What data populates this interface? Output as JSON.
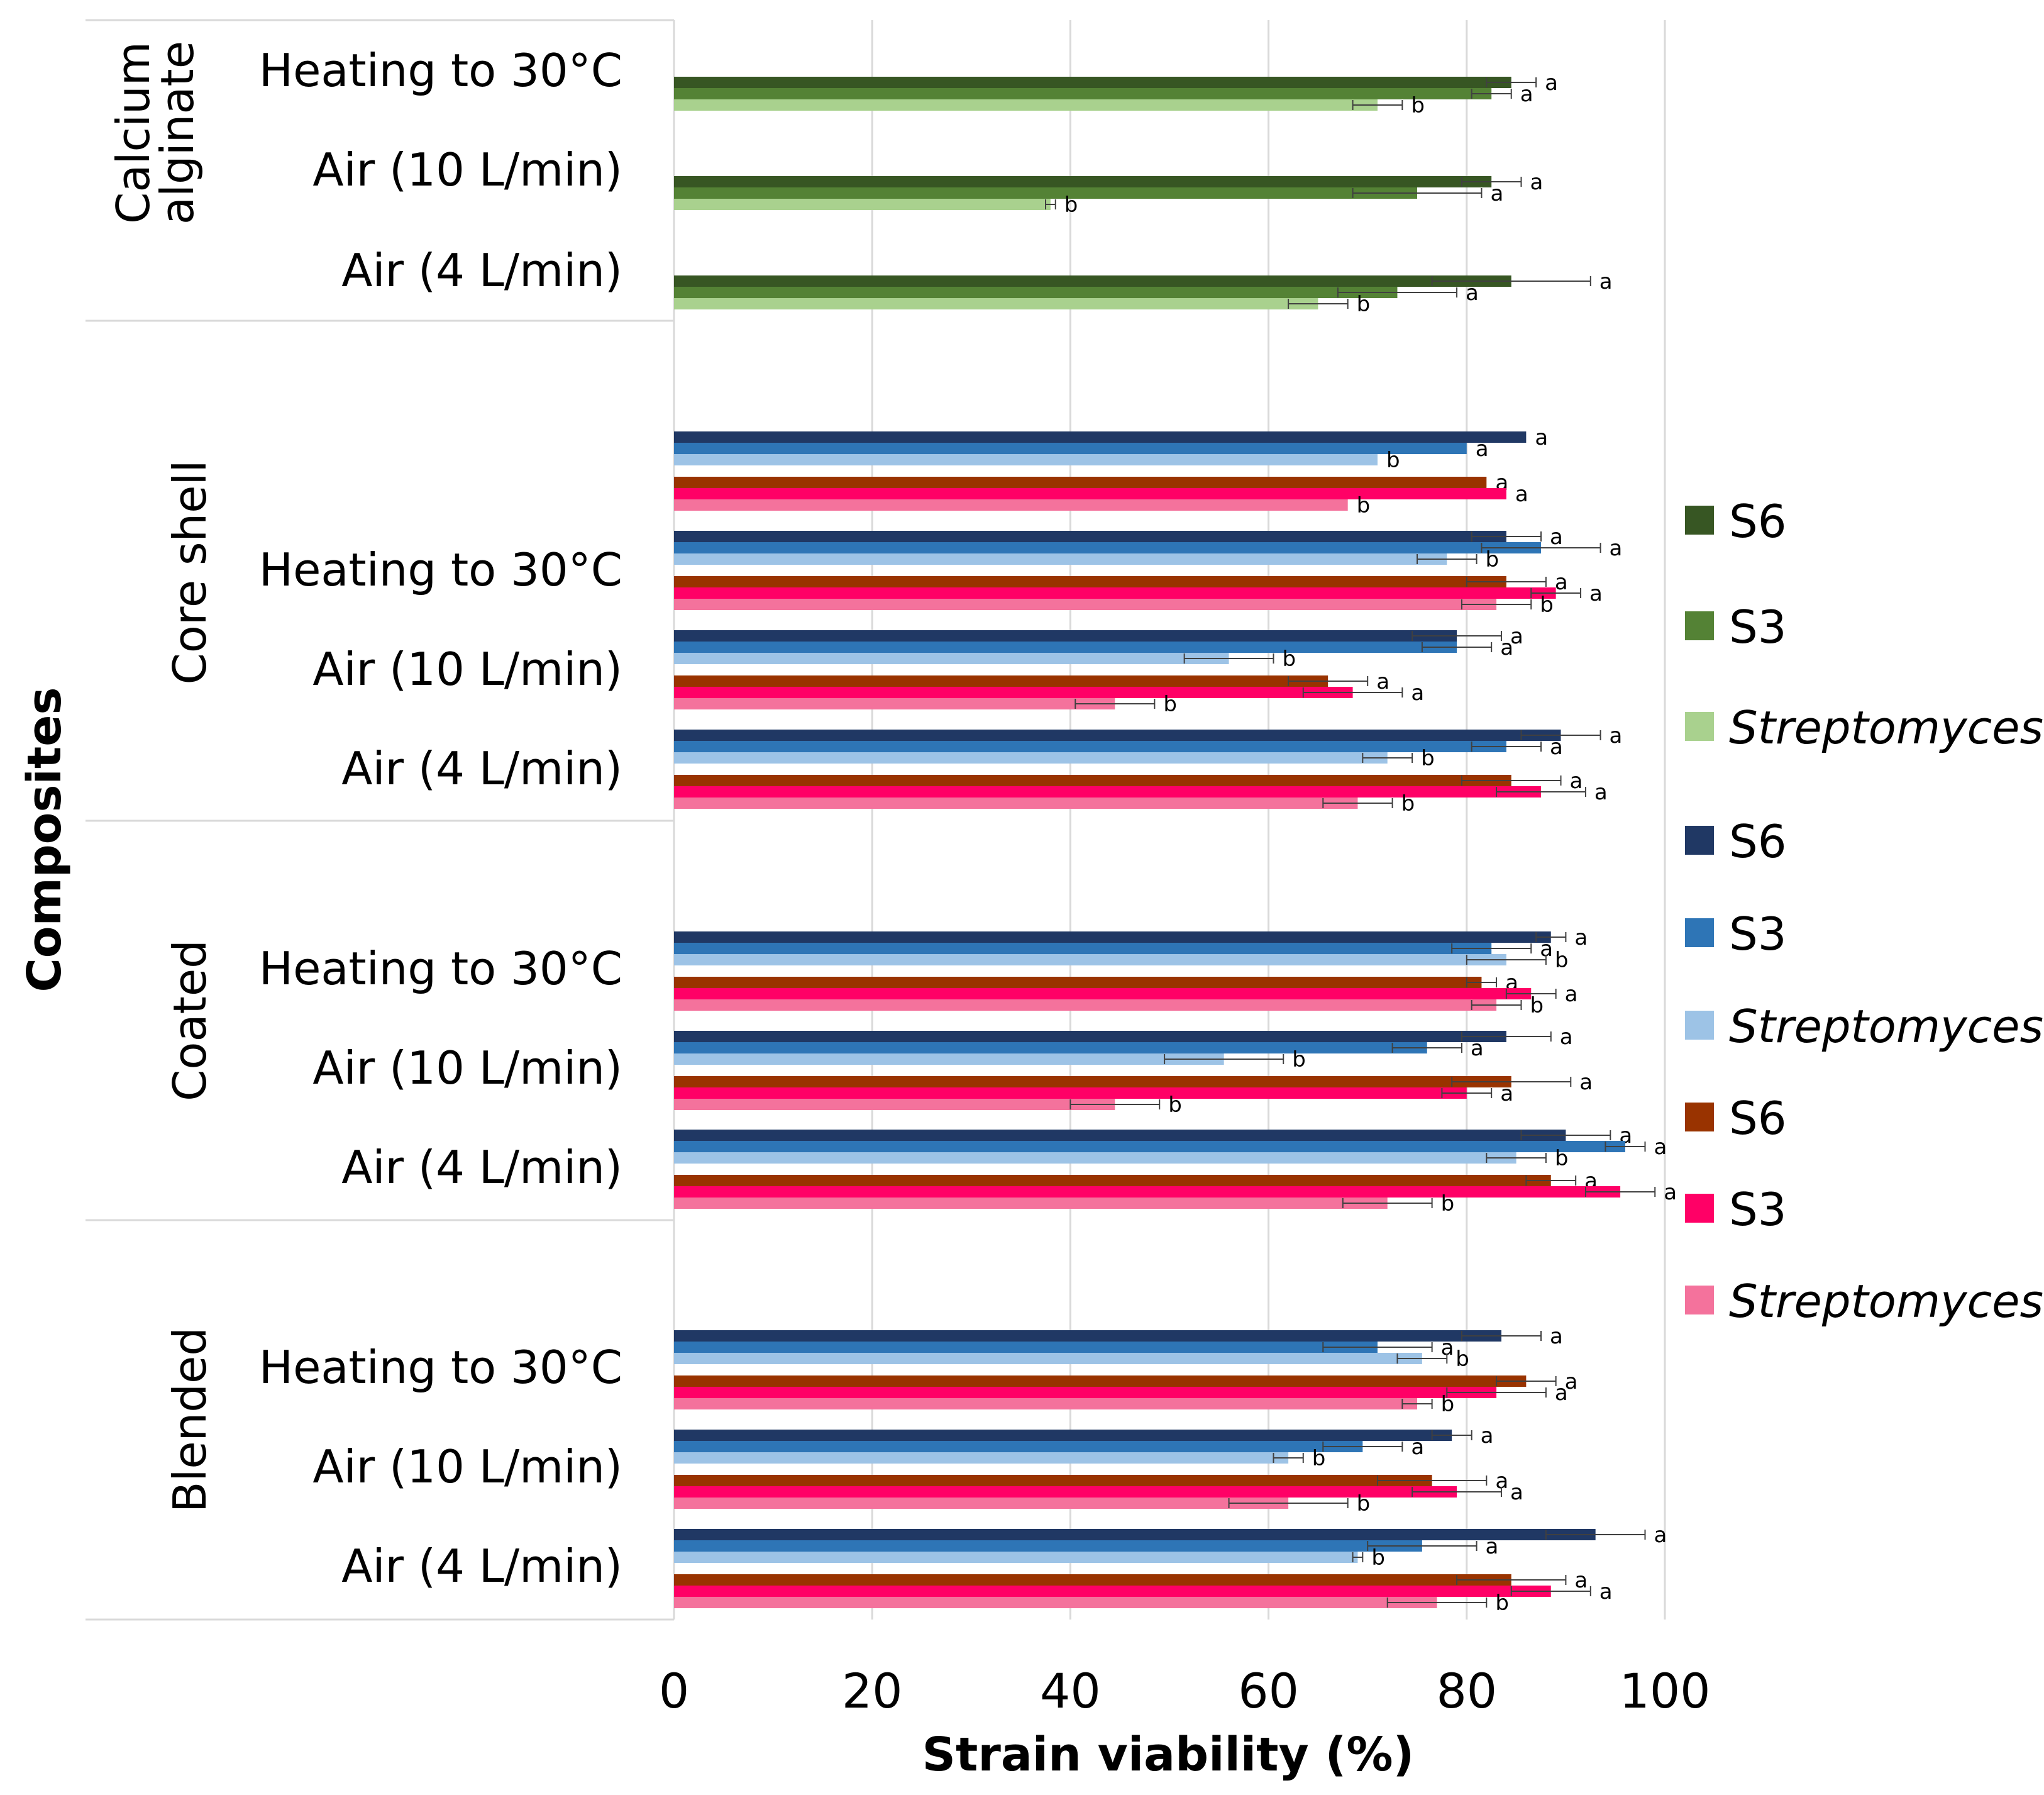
{
  "chart_data": {
    "type": "bar",
    "orientation": "horizontal",
    "xlabel": "Strain viability (%)",
    "ylabel": "Composites",
    "xlim": [
      0,
      100
    ],
    "xticks": [
      0,
      20,
      40,
      60,
      80,
      100
    ],
    "grid": "vertical",
    "legend_position": "right",
    "legend": [
      {
        "name": "S6",
        "color": "#375623",
        "italic": false
      },
      {
        "name": "S3",
        "color": "#548235",
        "italic": false
      },
      {
        "name": "Streptomyces",
        "color": "#a9d18e",
        "italic": true
      },
      {
        "name": "S6",
        "color": "#203864",
        "italic": false
      },
      {
        "name": "S3",
        "color": "#2e75b6",
        "italic": false
      },
      {
        "name": "Streptomyces",
        "color": "#9dc3e6",
        "italic": true
      },
      {
        "name": "S6",
        "color": "#993300",
        "italic": false
      },
      {
        "name": "S3",
        "color": "#ff0066",
        "italic": false
      },
      {
        "name": "Streptomyces",
        "color": "#f4729c",
        "italic": true
      }
    ],
    "groups": [
      {
        "name": "Calcium alginate",
        "categories": [
          {
            "label": "Heating to 30°C",
            "bars": [
              {
                "series": "S6",
                "color": "#375623",
                "value": 84.5,
                "error": 2.5,
                "sig": "a"
              },
              {
                "series": "S3",
                "color": "#548235",
                "value": 82.5,
                "error": 2.0,
                "sig": "a"
              },
              {
                "series": "Streptomyces",
                "color": "#a9d18e",
                "value": 71,
                "error": 2.5,
                "sig": "b"
              }
            ]
          },
          {
            "label": "Air (10 L/min)",
            "bars": [
              {
                "series": "S6",
                "color": "#375623",
                "value": 82.5,
                "error": 3.0,
                "sig": "a"
              },
              {
                "series": "S3",
                "color": "#548235",
                "value": 75,
                "error": 6.5,
                "sig": "a"
              },
              {
                "series": "Streptomyces",
                "color": "#a9d18e",
                "value": 38,
                "error": 0.5,
                "sig": "b"
              }
            ]
          },
          {
            "label": "Air (4 L/min)",
            "bars": [
              {
                "series": "S6",
                "color": "#375623",
                "value": 84.5,
                "error": 8.0,
                "sig": "a"
              },
              {
                "series": "S3",
                "color": "#548235",
                "value": 73,
                "error": 6.0,
                "sig": "a"
              },
              {
                "series": "Streptomyces",
                "color": "#a9d18e",
                "value": 65,
                "error": 3.0,
                "sig": "b"
              }
            ]
          }
        ]
      },
      {
        "name": "Core shell",
        "categories": [
          {
            "label": "",
            "bars": [
              {
                "series": "S6",
                "color": "#203864",
                "value": 86,
                "error": 0,
                "sig": "a"
              },
              {
                "series": "S3",
                "color": "#2e75b6",
                "value": 80,
                "error": 0,
                "sig": "a"
              },
              {
                "series": "Streptomyces",
                "color": "#9dc3e6",
                "value": 71,
                "error": 0,
                "sig": "b"
              },
              {
                "series": "S6",
                "color": "#993300",
                "value": 82,
                "error": 0,
                "sig": "a"
              },
              {
                "series": "S3",
                "color": "#ff0066",
                "value": 84,
                "error": 0,
                "sig": "a"
              },
              {
                "series": "Streptomyces",
                "color": "#f4729c",
                "value": 68,
                "error": 0,
                "sig": "b"
              }
            ]
          },
          {
            "label": "Heating to 30°C",
            "bars": [
              {
                "series": "S6",
                "color": "#203864",
                "value": 84,
                "error": 3.5,
                "sig": "a"
              },
              {
                "series": "S3",
                "color": "#2e75b6",
                "value": 87.5,
                "error": 6.0,
                "sig": "a"
              },
              {
                "series": "Streptomyces",
                "color": "#9dc3e6",
                "value": 78,
                "error": 3.0,
                "sig": "b"
              },
              {
                "series": "S6",
                "color": "#993300",
                "value": 84,
                "error": 4.0,
                "sig": "a"
              },
              {
                "series": "S3",
                "color": "#ff0066",
                "value": 89,
                "error": 2.5,
                "sig": "a"
              },
              {
                "series": "Streptomyces",
                "color": "#f4729c",
                "value": 83,
                "error": 3.5,
                "sig": "b"
              }
            ]
          },
          {
            "label": "Air (10 L/min)",
            "bars": [
              {
                "series": "S6",
                "color": "#203864",
                "value": 79,
                "error": 4.5,
                "sig": "a"
              },
              {
                "series": "S3",
                "color": "#2e75b6",
                "value": 79,
                "error": 3.5,
                "sig": "a"
              },
              {
                "series": "Streptomyces",
                "color": "#9dc3e6",
                "value": 56,
                "error": 4.5,
                "sig": "b"
              },
              {
                "series": "S6",
                "color": "#993300",
                "value": 66,
                "error": 4.0,
                "sig": "a"
              },
              {
                "series": "S3",
                "color": "#ff0066",
                "value": 68.5,
                "error": 5.0,
                "sig": "a"
              },
              {
                "series": "Streptomyces",
                "color": "#f4729c",
                "value": 44.5,
                "error": 4.0,
                "sig": "b"
              }
            ]
          },
          {
            "label": "Air (4 L/min)",
            "bars": [
              {
                "series": "S6",
                "color": "#203864",
                "value": 89.5,
                "error": 4.0,
                "sig": "a"
              },
              {
                "series": "S3",
                "color": "#2e75b6",
                "value": 84,
                "error": 3.5,
                "sig": "a"
              },
              {
                "series": "Streptomyces",
                "color": "#9dc3e6",
                "value": 72,
                "error": 2.5,
                "sig": "b"
              },
              {
                "series": "S6",
                "color": "#993300",
                "value": 84.5,
                "error": 5.0,
                "sig": "a"
              },
              {
                "series": "S3",
                "color": "#ff0066",
                "value": 87.5,
                "error": 4.5,
                "sig": "a"
              },
              {
                "series": "Streptomyces",
                "color": "#f4729c",
                "value": 69,
                "error": 3.5,
                "sig": "b"
              }
            ]
          }
        ]
      },
      {
        "name": "Coated",
        "categories": [
          {
            "label": "Heating to 30°C",
            "bars": [
              {
                "series": "S6",
                "color": "#203864",
                "value": 88.5,
                "error": 1.5,
                "sig": "a"
              },
              {
                "series": "S3",
                "color": "#2e75b6",
                "value": 82.5,
                "error": 4.0,
                "sig": "a"
              },
              {
                "series": "Streptomyces",
                "color": "#9dc3e6",
                "value": 84,
                "error": 4.0,
                "sig": "b"
              },
              {
                "series": "S6",
                "color": "#993300",
                "value": 81.5,
                "error": 1.5,
                "sig": "a"
              },
              {
                "series": "S3",
                "color": "#ff0066",
                "value": 86.5,
                "error": 2.5,
                "sig": "a"
              },
              {
                "series": "Streptomyces",
                "color": "#f4729c",
                "value": 83,
                "error": 2.5,
                "sig": "b"
              }
            ]
          },
          {
            "label": "Air (10 L/min)",
            "bars": [
              {
                "series": "S6",
                "color": "#203864",
                "value": 84,
                "error": 4.5,
                "sig": "a"
              },
              {
                "series": "S3",
                "color": "#2e75b6",
                "value": 76,
                "error": 3.5,
                "sig": "a"
              },
              {
                "series": "Streptomyces",
                "color": "#9dc3e6",
                "value": 55.5,
                "error": 6.0,
                "sig": "b"
              },
              {
                "series": "S6",
                "color": "#993300",
                "value": 84.5,
                "error": 6.0,
                "sig": "a"
              },
              {
                "series": "S3",
                "color": "#ff0066",
                "value": 80,
                "error": 2.5,
                "sig": "a"
              },
              {
                "series": "Streptomyces",
                "color": "#f4729c",
                "value": 44.5,
                "error": 4.5,
                "sig": "b"
              }
            ]
          },
          {
            "label": "Air (4 L/min)",
            "bars": [
              {
                "series": "S6",
                "color": "#203864",
                "value": 90,
                "error": 4.5,
                "sig": "a"
              },
              {
                "series": "S3",
                "color": "#2e75b6",
                "value": 96,
                "error": 2.0,
                "sig": "a"
              },
              {
                "series": "Streptomyces",
                "color": "#9dc3e6",
                "value": 85,
                "error": 3.0,
                "sig": "b"
              },
              {
                "series": "S6",
                "color": "#993300",
                "value": 88.5,
                "error": 2.5,
                "sig": "a"
              },
              {
                "series": "S3",
                "color": "#ff0066",
                "value": 95.5,
                "error": 3.5,
                "sig": "a"
              },
              {
                "series": "Streptomyces",
                "color": "#f4729c",
                "value": 72,
                "error": 4.5,
                "sig": "b"
              }
            ]
          }
        ]
      },
      {
        "name": "Blended",
        "categories": [
          {
            "label": "Heating to 30°C",
            "bars": [
              {
                "series": "S6",
                "color": "#203864",
                "value": 83.5,
                "error": 4.0,
                "sig": "a"
              },
              {
                "series": "S3",
                "color": "#2e75b6",
                "value": 71,
                "error": 5.5,
                "sig": "a"
              },
              {
                "series": "Streptomyces",
                "color": "#9dc3e6",
                "value": 75.5,
                "error": 2.5,
                "sig": "b"
              },
              {
                "series": "S6",
                "color": "#993300",
                "value": 86,
                "error": 3.0,
                "sig": "a"
              },
              {
                "series": "S3",
                "color": "#ff0066",
                "value": 83,
                "error": 5.0,
                "sig": "a"
              },
              {
                "series": "Streptomyces",
                "color": "#f4729c",
                "value": 75,
                "error": 1.5,
                "sig": "b"
              }
            ]
          },
          {
            "label": "Air (10 L/min)",
            "bars": [
              {
                "series": "S6",
                "color": "#203864",
                "value": 78.5,
                "error": 2.0,
                "sig": "a"
              },
              {
                "series": "S3",
                "color": "#2e75b6",
                "value": 69.5,
                "error": 4.0,
                "sig": "a"
              },
              {
                "series": "Streptomyces",
                "color": "#9dc3e6",
                "value": 62,
                "error": 1.5,
                "sig": "b"
              },
              {
                "series": "S6",
                "color": "#993300",
                "value": 76.5,
                "error": 5.5,
                "sig": "a"
              },
              {
                "series": "S3",
                "color": "#ff0066",
                "value": 79,
                "error": 4.5,
                "sig": "a"
              },
              {
                "series": "Streptomyces",
                "color": "#f4729c",
                "value": 62,
                "error": 6.0,
                "sig": "b"
              }
            ]
          },
          {
            "label": "Air (4 L/min)",
            "bars": [
              {
                "series": "S6",
                "color": "#203864",
                "value": 93,
                "error": 5.0,
                "sig": "a"
              },
              {
                "series": "S3",
                "color": "#2e75b6",
                "value": 75.5,
                "error": 5.5,
                "sig": "a"
              },
              {
                "series": "Streptomyces",
                "color": "#9dc3e6",
                "value": 69,
                "error": 0.5,
                "sig": "b"
              },
              {
                "series": "S6",
                "color": "#993300",
                "value": 84.5,
                "error": 5.5,
                "sig": "a"
              },
              {
                "series": "S3",
                "color": "#ff0066",
                "value": 88.5,
                "error": 4.0,
                "sig": "a"
              },
              {
                "series": "Streptomyces",
                "color": "#f4729c",
                "value": 77,
                "error": 5.0,
                "sig": "b"
              }
            ]
          }
        ]
      }
    ]
  }
}
